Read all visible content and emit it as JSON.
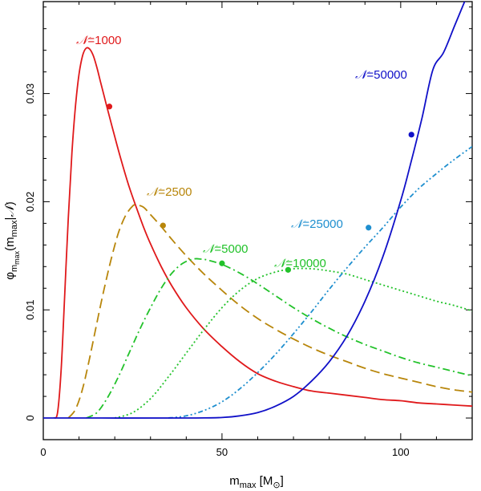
{
  "chart_data": {
    "type": "line",
    "title": "",
    "xlabel": "m_max [M_⊙]",
    "xlabel_parts": {
      "main": "m",
      "sub": "max",
      "unit_open": " [M",
      "unit_sub": "⊙",
      "unit_close": "]"
    },
    "ylabel": "φ_m_max(m_max|N)",
    "ylabel_parts": {
      "main": "φ",
      "sub": "m",
      "subsub": "max",
      "open": "(m",
      "argsub": "max",
      "bar": "|",
      "N": "𝒩",
      "close": ")"
    },
    "xlim": [
      0,
      120
    ],
    "ylim": [
      -0.002,
      0.0385
    ],
    "x_ticks": [
      0,
      50,
      100
    ],
    "x_tick_labels": [
      "0",
      "50",
      "100"
    ],
    "y_ticks": [
      0,
      0.01,
      0.02,
      0.03
    ],
    "y_tick_labels": [
      "0",
      "0.01",
      "0.02",
      "0.03"
    ],
    "series": [
      {
        "name": "N=1000",
        "label_symbol": "𝒩",
        "label_value": "=1000",
        "color": "#e0191b",
        "dash": "solid",
        "x": [
          3,
          4,
          5,
          6,
          7,
          8,
          9,
          10,
          11,
          12,
          13,
          14,
          15,
          16,
          17,
          18,
          20,
          22,
          24,
          26,
          28,
          30,
          33,
          36,
          40,
          45,
          50,
          55,
          60,
          65,
          70,
          75,
          80,
          85,
          90,
          95,
          100,
          105,
          110,
          115,
          120
        ],
        "y": [
          0,
          0.0005,
          0.0045,
          0.0115,
          0.0185,
          0.0245,
          0.0288,
          0.0318,
          0.0335,
          0.0342,
          0.0341,
          0.0335,
          0.0324,
          0.0311,
          0.0298,
          0.0285,
          0.026,
          0.0236,
          0.0214,
          0.0195,
          0.0177,
          0.0161,
          0.014,
          0.0122,
          0.0102,
          0.0082,
          0.0066,
          0.0052,
          0.0041,
          0.0034,
          0.0029,
          0.0025,
          0.0023,
          0.0021,
          0.0019,
          0.0017,
          0.0016,
          0.0014,
          0.0013,
          0.0012,
          0.0011
        ],
        "marker": [
          18.5,
          0.0288
        ]
      },
      {
        "name": "N=2500",
        "label_symbol": "𝒩",
        "label_value": "=2500",
        "color": "#b8860b",
        "dash": "dashed",
        "x": [
          7,
          9,
          11,
          13,
          15,
          17,
          19,
          21,
          23,
          25,
          26,
          28,
          30,
          33,
          36,
          40,
          45,
          50,
          55,
          60,
          65,
          70,
          75,
          80,
          85,
          90,
          95,
          100,
          105,
          110,
          115,
          120
        ],
        "y": [
          0,
          0.0008,
          0.0027,
          0.0056,
          0.0088,
          0.0119,
          0.0147,
          0.0171,
          0.0187,
          0.0196,
          0.0197,
          0.0195,
          0.0188,
          0.0177,
          0.0165,
          0.015,
          0.0133,
          0.0118,
          0.0104,
          0.0092,
          0.0082,
          0.0073,
          0.0065,
          0.0058,
          0.0052,
          0.0046,
          0.0041,
          0.0037,
          0.0033,
          0.0029,
          0.0026,
          0.0024
        ],
        "marker": [
          33.5,
          0.0178
        ]
      },
      {
        "name": "N=5000",
        "label_symbol": "𝒩",
        "label_value": "=5000",
        "color": "#22c22a",
        "dash": "dashdot",
        "x": [
          12,
          15,
          18,
          21,
          24,
          27,
          30,
          33,
          36,
          39,
          42,
          44,
          46,
          50,
          55,
          60,
          65,
          70,
          75,
          80,
          85,
          90,
          95,
          100,
          105,
          110,
          115,
          120
        ],
        "y": [
          0,
          0.0005,
          0.0019,
          0.0038,
          0.006,
          0.0082,
          0.0102,
          0.012,
          0.0134,
          0.0143,
          0.0147,
          0.0147,
          0.0146,
          0.0142,
          0.0134,
          0.0124,
          0.0113,
          0.0102,
          0.0092,
          0.0083,
          0.0075,
          0.0068,
          0.0062,
          0.0056,
          0.0051,
          0.0047,
          0.0043,
          0.0039
        ],
        "marker": [
          50.0,
          0.0143
        ]
      },
      {
        "name": "N=10000",
        "label_symbol": "𝒩",
        "label_value": "=10000",
        "color": "#22c22a",
        "dash": "dotted",
        "x": [
          20,
          25,
          30,
          35,
          40,
          45,
          50,
          55,
          60,
          65,
          70,
          75,
          80,
          85,
          90,
          95,
          100,
          105,
          110,
          115,
          120
        ],
        "y": [
          0,
          0.0005,
          0.0018,
          0.0038,
          0.006,
          0.0082,
          0.0102,
          0.0118,
          0.0129,
          0.0135,
          0.0138,
          0.0138,
          0.0136,
          0.0133,
          0.0128,
          0.0123,
          0.0118,
          0.0113,
          0.0108,
          0.0104,
          0.0099
        ],
        "marker": [
          68.5,
          0.0137
        ]
      },
      {
        "name": "N=25000",
        "label_symbol": "𝒩",
        "label_value": "=25000",
        "color": "#1f8fcf",
        "dash": "dashdotdot",
        "x": [
          35,
          40,
          45,
          50,
          55,
          60,
          65,
          70,
          75,
          80,
          85,
          90,
          95,
          100,
          105,
          110,
          115,
          120
        ],
        "y": [
          0,
          0.0002,
          0.0007,
          0.0015,
          0.0027,
          0.0042,
          0.0059,
          0.0078,
          0.0098,
          0.0119,
          0.0139,
          0.0158,
          0.0176,
          0.0195,
          0.0212,
          0.0226,
          0.0239,
          0.0251
        ],
        "marker": [
          91.0,
          0.0176
        ]
      },
      {
        "name": "N=50000",
        "label_symbol": "𝒩",
        "label_value": "=50000",
        "color": "#1010c8",
        "dash": "solid",
        "x": [
          0,
          40,
          50,
          55,
          60,
          65,
          70,
          75,
          80,
          85,
          90,
          95,
          100,
          103,
          106,
          109,
          112,
          115,
          118
        ],
        "y": [
          0,
          0,
          5e-05,
          0.0002,
          0.0005,
          0.0011,
          0.002,
          0.0034,
          0.0052,
          0.0076,
          0.0108,
          0.0149,
          0.0201,
          0.0238,
          0.0278,
          0.0322,
          0.0338,
          0.0362,
          0.0386
        ],
        "marker": [
          103.0,
          0.0262
        ]
      }
    ]
  }
}
